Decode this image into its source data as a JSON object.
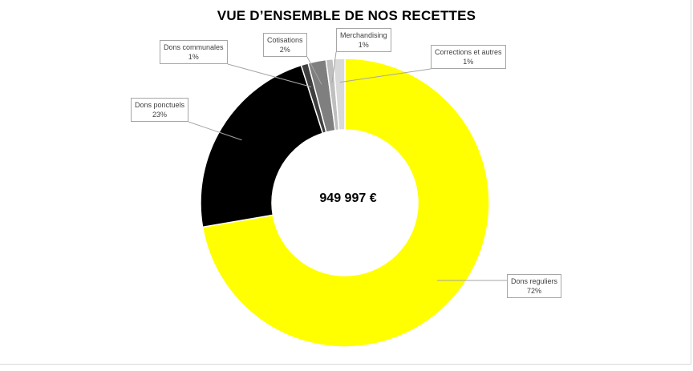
{
  "chart_data": {
    "type": "pie",
    "title": "VUE D’ENSEMBLE DE NOS RECETTES",
    "center_label": "949 997 €",
    "hole": "doughnut",
    "start_angle_deg": 0,
    "direction": "clockwise",
    "slices": [
      {
        "name": "Dons reguliers",
        "pct_label": "72%",
        "value": 72.3,
        "color": "#ffff00"
      },
      {
        "name": "Dons ponctuels",
        "pct_label": "23%",
        "value": 22.8,
        "color": "#000000"
      },
      {
        "name": "Dons communales",
        "pct_label": "1%",
        "value": 0.8,
        "color": "#404040"
      },
      {
        "name": "Cotisations",
        "pct_label": "2%",
        "value": 2.0,
        "color": "#7f7f7f"
      },
      {
        "name": "Merchandising",
        "pct_label": "1%",
        "value": 0.8,
        "color": "#bfbfbf"
      },
      {
        "name": "Corrections et autres",
        "pct_label": "1%",
        "value": 1.3,
        "color": "#d9d9d9"
      }
    ]
  }
}
